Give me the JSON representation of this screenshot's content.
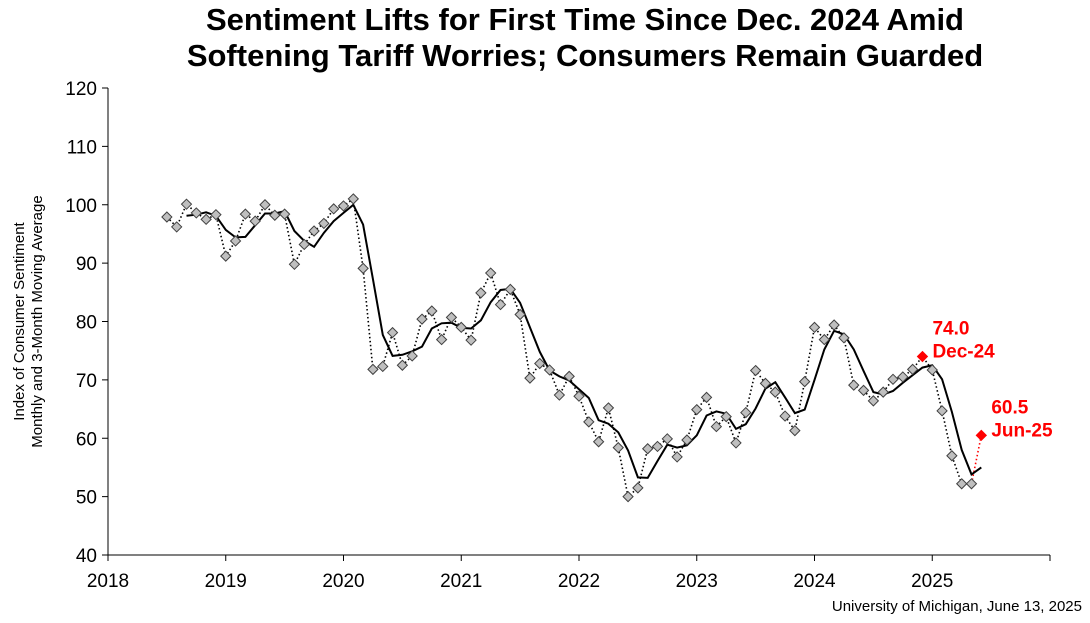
{
  "chart_data": {
    "type": "line",
    "title": "Sentiment Lifts for First Time Since Dec. 2024 Amid",
    "title_line2": "Softening Tariff Worries; Consumers Remain Guarded",
    "ylabel": "Index of Consumer Sentiment",
    "ylabel_line2": "Monthly and 3-Month Moving Average",
    "ylim": [
      40,
      120
    ],
    "yticks": [
      40,
      50,
      60,
      70,
      80,
      90,
      100,
      110,
      120
    ],
    "xlim": [
      2018,
      2026
    ],
    "xticks": [
      "2018",
      "2019",
      "2020",
      "2021",
      "2022",
      "2023",
      "2024",
      "2025"
    ],
    "grid": false,
    "legend": "none",
    "source": "University of Michigan, June 13, 2025",
    "colors": {
      "marker_fill": "#bfbfbf",
      "marker_stroke": "#404040",
      "line": "#000000",
      "highlight": "#ff0000"
    },
    "series": [
      {
        "type": "monthly",
        "start": "2018-07",
        "values": [
          97.9,
          96.2,
          100.1,
          98.6,
          97.5,
          98.3,
          91.2,
          93.8,
          98.4,
          97.2,
          100.0,
          98.2,
          98.4,
          89.8,
          93.2,
          95.5,
          96.8,
          99.3,
          99.8,
          101.0,
          89.1,
          71.8,
          72.3,
          78.1,
          72.5,
          74.1,
          80.4,
          81.8,
          76.9,
          80.7,
          79.0,
          76.8,
          84.9,
          88.3,
          82.9,
          85.5,
          81.2,
          70.3,
          72.8,
          71.7,
          67.4,
          70.6,
          67.2,
          62.8,
          59.4,
          65.2,
          58.4,
          50.0,
          51.5,
          58.2,
          58.6,
          59.9,
          56.8,
          59.7,
          64.9,
          67.0,
          62.0,
          63.7,
          59.2,
          64.4,
          71.6,
          69.4,
          67.9,
          63.8,
          61.3,
          69.7,
          79.0,
          76.9,
          79.4,
          77.2,
          69.1,
          68.2,
          66.4,
          67.9,
          70.1,
          70.5,
          71.8,
          74.0,
          71.7,
          64.7,
          57.0,
          52.2,
          52.2,
          60.5
        ]
      },
      {
        "type": "3-month moving average",
        "start": "2018-09",
        "values": [
          98.1,
          98.3,
          98.7,
          98.1,
          95.7,
          94.4,
          94.5,
          96.5,
          98.5,
          98.5,
          98.9,
          95.5,
          93.8,
          92.8,
          95.2,
          97.2,
          98.6,
          100.0,
          96.6,
          87.3,
          77.7,
          74.1,
          74.3,
          74.9,
          75.7,
          78.8,
          79.7,
          79.8,
          78.9,
          78.8,
          80.2,
          83.3,
          85.4,
          85.6,
          83.2,
          79.0,
          74.8,
          71.6,
          70.6,
          69.9,
          68.4,
          66.9,
          63.1,
          62.5,
          61.0,
          57.9,
          53.3,
          53.2,
          56.1,
          58.9,
          58.4,
          58.8,
          60.5,
          63.9,
          64.6,
          64.2,
          61.6,
          62.4,
          65.1,
          68.5,
          69.6,
          67.0,
          64.3,
          64.9,
          70.0,
          75.2,
          78.4,
          77.8,
          75.2,
          71.5,
          67.9,
          67.5,
          68.1,
          69.5,
          70.8,
          72.1,
          72.5,
          70.1,
          64.5,
          58.0,
          53.8,
          55.0
        ]
      }
    ],
    "annotations": [
      {
        "value_label": "74.0",
        "date_label": "Dec-24",
        "date": "2024-12",
        "value": 74.0
      },
      {
        "value_label": "60.5",
        "date_label": "Jun-25",
        "date": "2025-06",
        "value": 60.5
      }
    ]
  }
}
